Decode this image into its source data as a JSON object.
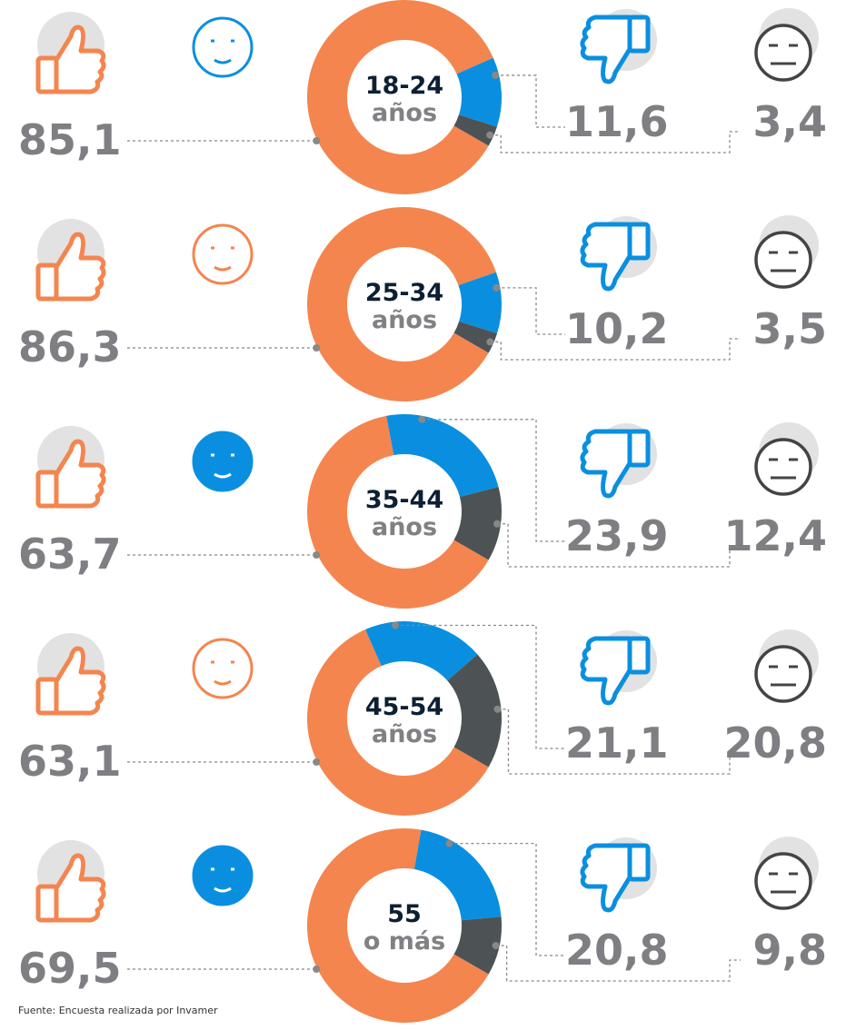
{
  "chart_data": [
    {
      "type": "donut",
      "center_label": [
        "18-24",
        "años"
      ],
      "values": [
        85.1,
        11.6,
        3.4
      ],
      "value_labels": [
        "85,1",
        "11,6",
        "3,4"
      ],
      "colors": [
        "#f4854f",
        "#0a8fe0",
        "#4d5355"
      ]
    },
    {
      "type": "donut",
      "center_label": [
        "25-34",
        "años"
      ],
      "values": [
        86.3,
        10.2,
        3.5
      ],
      "value_labels": [
        "86,3",
        "10,2",
        "3,5"
      ],
      "colors": [
        "#f4854f",
        "#0a8fe0",
        "#4d5355"
      ]
    },
    {
      "type": "donut",
      "center_label": [
        "35-44",
        "años"
      ],
      "values": [
        63.7,
        23.9,
        12.4
      ],
      "value_labels": [
        "63,7",
        "23,9",
        "12,4"
      ],
      "colors": [
        "#f4854f",
        "#0a8fe0",
        "#4d5355"
      ]
    },
    {
      "type": "donut",
      "center_label": [
        "45-54",
        "años"
      ],
      "values": [
        63.1,
        21.1,
        20.8
      ],
      "value_labels": [
        "63,1",
        "21,1",
        "20,8"
      ],
      "colors": [
        "#f4854f",
        "#0a8fe0",
        "#4d5355"
      ]
    },
    {
      "type": "donut",
      "center_label": [
        "55",
        "o más"
      ],
      "values": [
        69.5,
        20.8,
        9.8
      ],
      "value_labels": [
        "69,5",
        "20,8",
        "9,8"
      ],
      "colors": [
        "#f4854f",
        "#0a8fe0",
        "#4d5355"
      ]
    }
  ],
  "source": "Fuente: Encuesta realizada por Invamer"
}
